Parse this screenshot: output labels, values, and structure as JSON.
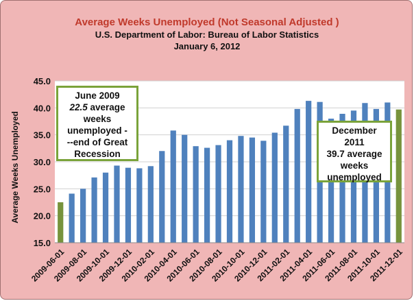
{
  "chart_data": {
    "type": "bar",
    "title": "Average Weeks Unemployed (Not Seasonal Adjusted )",
    "subtitle": "U.S. Department  of Labor: Bureau of Labor Statistics",
    "date": "January 6, 2012",
    "xlabel": "",
    "ylabel": "Average Weeks Unemployed",
    "ylim": [
      15.0,
      45.0
    ],
    "yticks": [
      "15.0",
      "20.0",
      "25.0",
      "30.0",
      "35.0",
      "40.0",
      "45.0"
    ],
    "grid": true,
    "categories": [
      "2009-06-01",
      "2009-07-01",
      "2009-08-01",
      "2009-09-01",
      "2009-10-01",
      "2009-11-01",
      "2009-12-01",
      "2010-01-01",
      "2010-02-01",
      "2010-03-01",
      "2010-04-01",
      "2010-05-01",
      "2010-06-01",
      "2010-07-01",
      "2010-08-01",
      "2010-09-01",
      "2010-10-01",
      "2010-11-01",
      "2010-12-01",
      "2011-01-01",
      "2011-02-01",
      "2011-03-01",
      "2011-04-01",
      "2011-05-01",
      "2011-06-01",
      "2011-07-01",
      "2011-08-01",
      "2011-09-01",
      "2011-10-01",
      "2011-11-01",
      "2011-12-01"
    ],
    "tick_labels": [
      "2009-06-01",
      "2009-08-01",
      "2009-10-01",
      "2009-12-01",
      "2010-02-01",
      "2010-04-01",
      "2010-06-01",
      "2010-08-01",
      "2010-10-01",
      "2010-12-01",
      "2011-02-01",
      "2011-04-01",
      "2011-06-01",
      "2011-08-01",
      "2011-10-01",
      "2011-12-01"
    ],
    "values": [
      22.5,
      24.1,
      25.0,
      27.1,
      28.0,
      29.3,
      28.9,
      28.8,
      29.2,
      32.0,
      35.8,
      35.0,
      32.9,
      32.6,
      33.1,
      34.0,
      34.8,
      34.5,
      33.9,
      35.4,
      36.7,
      39.8,
      41.3,
      41.1,
      38.0,
      38.9,
      39.5,
      40.9,
      39.8,
      41.0,
      39.7
    ],
    "highlighted": [
      0,
      30
    ],
    "colors": {
      "bar": "#4f81bd",
      "highlight": "#77933c",
      "plot_bg": "#ffffff",
      "title": "#c0392b"
    }
  },
  "annotations": {
    "start": {
      "line1": "June 2009",
      "line2_value": "22.5",
      "line2_rest": " average",
      "line3": "weeks",
      "line4": "unemployed -",
      "line5": "--end of Great",
      "line6": "Recession"
    },
    "end": {
      "line1": "December",
      "line2": "2011",
      "line3": "39.7 average",
      "line4": "weeks",
      "line5": "unemployed"
    }
  }
}
